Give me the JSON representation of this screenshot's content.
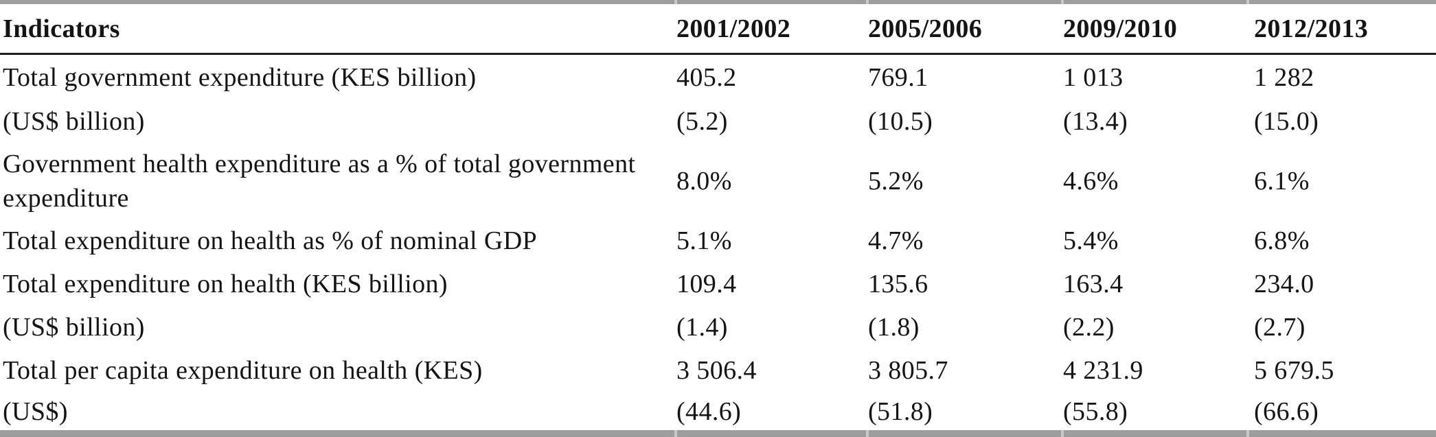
{
  "table": {
    "columns": [
      "Indicators",
      "2001/2002",
      "2005/2006",
      "2009/2010",
      "2012/2013"
    ],
    "rows": [
      {
        "label_lines": [
          "Total government expenditure (KES billion)"
        ],
        "values": [
          "405.2",
          "769.1",
          "1 013",
          "1 282"
        ]
      },
      {
        "label_lines": [
          "(US$ billion)"
        ],
        "values": [
          "(5.2)",
          "(10.5)",
          "(13.4)",
          "(15.0)"
        ]
      },
      {
        "label_lines": [
          "Government health expenditure as a % of total government",
          "expenditure"
        ],
        "values": [
          "8.0%",
          "5.2%",
          "4.6%",
          "6.1%"
        ]
      },
      {
        "label_lines": [
          "Total expenditure on health as % of nominal GDP"
        ],
        "values": [
          "5.1%",
          "4.7%",
          "5.4%",
          "6.8%"
        ]
      },
      {
        "label_lines": [
          "Total expenditure on health (KES billion)"
        ],
        "values": [
          "109.4",
          "135.6",
          "163.4",
          "234.0"
        ]
      },
      {
        "label_lines": [
          "(US$ billion)"
        ],
        "values": [
          "(1.4)",
          "(1.8)",
          "(2.2)",
          "(2.7)"
        ]
      },
      {
        "label_lines": [
          "Total per capita expenditure on health (KES)"
        ],
        "values": [
          "3 506.4",
          "3 805.7",
          "4 231.9",
          "5 679.5"
        ]
      },
      {
        "label_lines": [
          "(US$)"
        ],
        "values": [
          "(44.6)",
          "(51.8)",
          "(55.8)",
          "(66.6)"
        ]
      }
    ]
  },
  "colors": {
    "outer_rule_gray": "#9d9d9d",
    "notch_gray": "#c9c9c9",
    "header_rule_black": "#1c1c1c",
    "text": "#141414",
    "background": "#ffffff"
  }
}
